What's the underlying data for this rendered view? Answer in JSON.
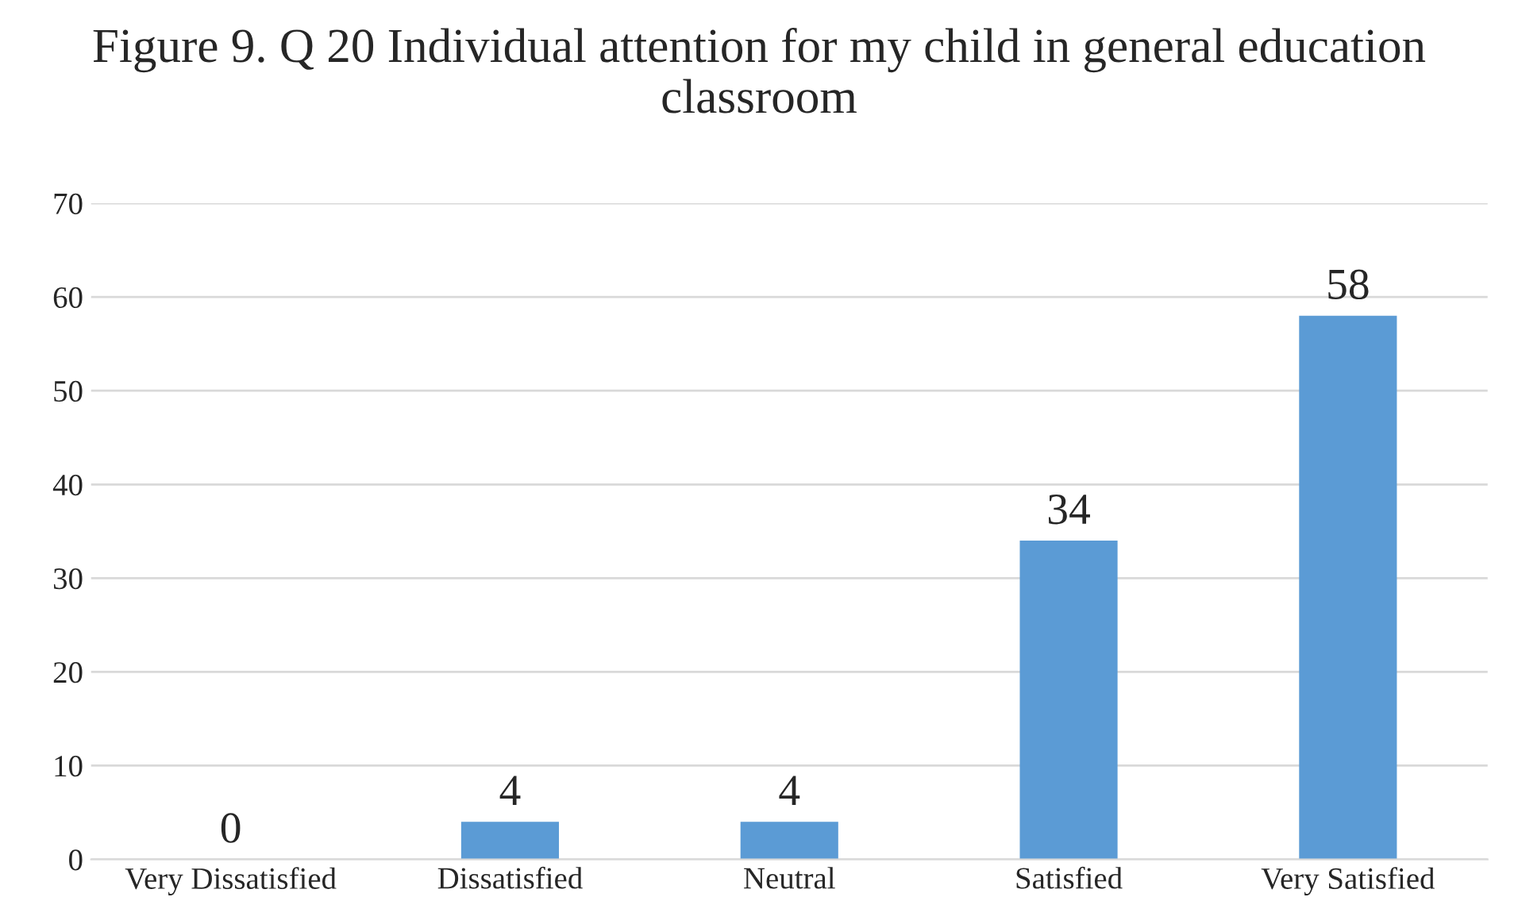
{
  "chart_data": {
    "type": "bar",
    "title": "Figure 9. Q 20 Individual attention for my child in general education classroom",
    "categories": [
      "Very Dissatisfied",
      "Dissatisfied",
      "Neutral",
      "Satisfied",
      "Very Satisfied"
    ],
    "values": [
      0,
      4,
      4,
      34,
      58
    ],
    "color": "#5b9bd5",
    "ylim": [
      0,
      70
    ],
    "yticks": [
      0,
      10,
      20,
      30,
      40,
      50,
      60,
      70
    ],
    "grid": "y",
    "data_labels": true
  }
}
